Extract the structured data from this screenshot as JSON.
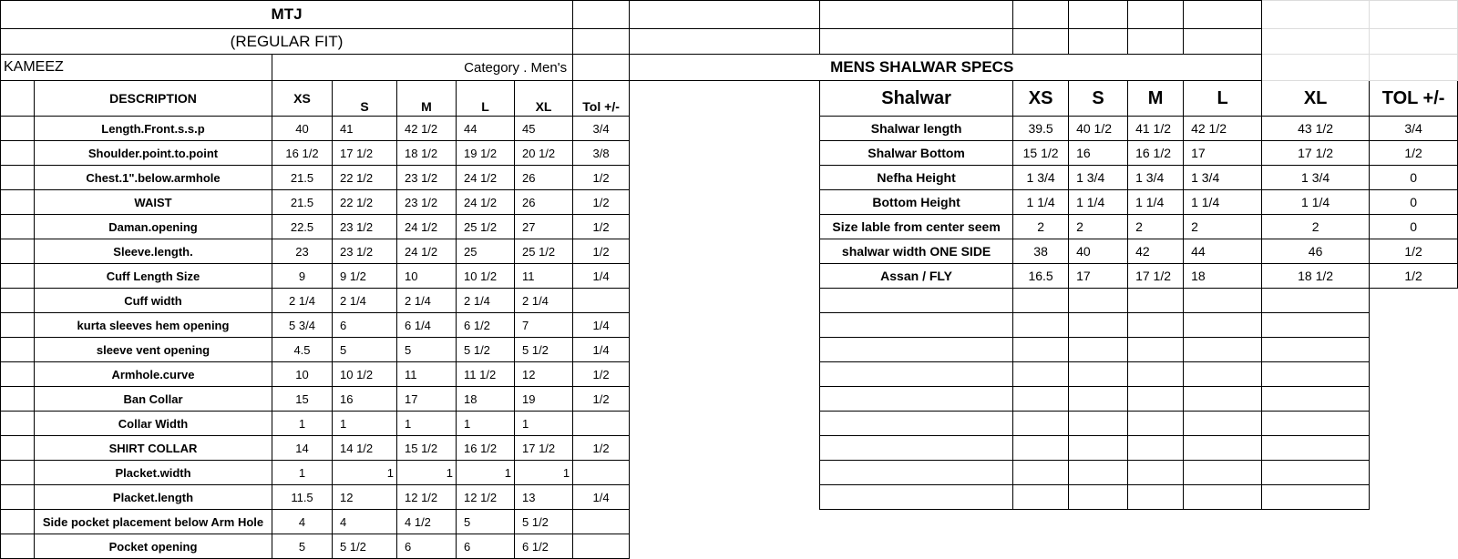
{
  "kameez": {
    "title": "MTJ",
    "subtitle": "(REGULAR FIT)",
    "section": "KAMEEZ",
    "category": "Category .  Men's",
    "headers": [
      "DESCRIPTION",
      "XS",
      "S",
      "M",
      "L",
      "XL",
      "Tol +/-"
    ],
    "rows": [
      {
        "desc": "Length.Front.s.s.p",
        "values": [
          "40",
          "41",
          "42 1/2",
          "44",
          "45"
        ],
        "tol": "3/4"
      },
      {
        "desc": "Shoulder.point.to.point",
        "values": [
          "16 1/2",
          "17 1/2",
          "18 1/2",
          "19 1/2",
          "20 1/2"
        ],
        "tol": "3/8"
      },
      {
        "desc": "Chest.1\".below.armhole",
        "values": [
          "21.5",
          "22 1/2",
          "23 1/2",
          "24 1/2",
          "26"
        ],
        "tol": "1/2"
      },
      {
        "desc": "WAIST",
        "values": [
          "21.5",
          "22 1/2",
          "23 1/2",
          "24 1/2",
          "26"
        ],
        "tol": "1/2"
      },
      {
        "desc": "Daman.opening",
        "values": [
          "22.5",
          "23 1/2",
          "24 1/2",
          "25 1/2",
          "27"
        ],
        "tol": "1/2"
      },
      {
        "desc": "Sleeve.length.",
        "values": [
          "23",
          "23 1/2",
          "24 1/2",
          "25",
          "25 1/2"
        ],
        "tol": "1/2"
      },
      {
        "desc": "Cuff Length Size",
        "values": [
          "9",
          "9 1/2",
          "10",
          "10 1/2",
          "11"
        ],
        "tol": "1/4"
      },
      {
        "desc": "Cuff width",
        "values": [
          "2 1/4",
          "2 1/4",
          "2 1/4",
          "2 1/4",
          "2 1/4"
        ],
        "tol": ""
      },
      {
        "desc": "kurta sleeves hem opening",
        "values": [
          "5 3/4",
          "6",
          "6 1/4",
          "6 1/2",
          "7"
        ],
        "tol": "1/4"
      },
      {
        "desc": "sleeve vent opening",
        "values": [
          "4.5",
          "5",
          "5",
          "5 1/2",
          "5 1/2"
        ],
        "tol": "1/4"
      },
      {
        "desc": "Armhole.curve",
        "values": [
          "10",
          "10 1/2",
          "11",
          "11 1/2",
          "12"
        ],
        "tol": "1/2"
      },
      {
        "desc": "Ban Collar",
        "values": [
          "15",
          "16",
          "17",
          "18",
          "19"
        ],
        "tol": "1/2"
      },
      {
        "desc": "Collar Width",
        "values": [
          "1",
          "1",
          "1",
          "1",
          "1"
        ],
        "tol": ""
      },
      {
        "desc": "SHIRT COLLAR",
        "values": [
          "14",
          "14 1/2",
          "15 1/2",
          "16 1/2",
          "17 1/2"
        ],
        "tol": "1/2"
      },
      {
        "desc": "Placket.width",
        "values": [
          "1",
          "1",
          "1",
          "1",
          "1"
        ],
        "tol": "",
        "right_aligned": true
      },
      {
        "desc": "Placket.length",
        "values": [
          "11.5",
          "12",
          "12 1/2",
          "12 1/2",
          "13"
        ],
        "tol": "1/4"
      },
      {
        "desc": "Side pocket placement below Arm Hole",
        "values": [
          "4",
          "4",
          "4 1/2",
          "5",
          "5 1/2"
        ],
        "tol": ""
      },
      {
        "desc": "Pocket opening",
        "values": [
          "5",
          "5 1/2",
          "6",
          "6",
          "6 1/2"
        ],
        "tol": ""
      }
    ]
  },
  "shalwar": {
    "title": "MENS SHALWAR SPECS",
    "headers": [
      "Shalwar",
      "XS",
      "S",
      "M",
      "L",
      "XL",
      "TOL +/-"
    ],
    "rows": [
      {
        "desc": "Shalwar length",
        "values": [
          "39.5",
          "40 1/2",
          "41 1/2",
          "42 1/2",
          "43 1/2"
        ],
        "tol": "3/4"
      },
      {
        "desc": "Shalwar Bottom",
        "values": [
          "15 1/2",
          "16",
          "16 1/2",
          "17",
          "17 1/2"
        ],
        "tol": "1/2"
      },
      {
        "desc": "Nefha Height",
        "values": [
          "1 3/4",
          "1 3/4",
          "1 3/4",
          "1 3/4",
          "1 3/4"
        ],
        "tol": "0"
      },
      {
        "desc": "Bottom Height",
        "values": [
          "1 1/4",
          "1 1/4",
          "1 1/4",
          "1 1/4",
          "1 1/4"
        ],
        "tol": "0"
      },
      {
        "desc": "Size lable from center seem",
        "values": [
          "2",
          "2",
          "2",
          "2",
          "2"
        ],
        "tol": "0"
      },
      {
        "desc": "shalwar width ONE SIDE",
        "values": [
          "38",
          "40",
          "42",
          "44",
          "46"
        ],
        "tol": "1/2"
      },
      {
        "desc": "Assan / FLY",
        "values": [
          "16.5",
          "17",
          "17 1/2",
          "18",
          "18 1/2"
        ],
        "tol": "1/2"
      }
    ]
  }
}
